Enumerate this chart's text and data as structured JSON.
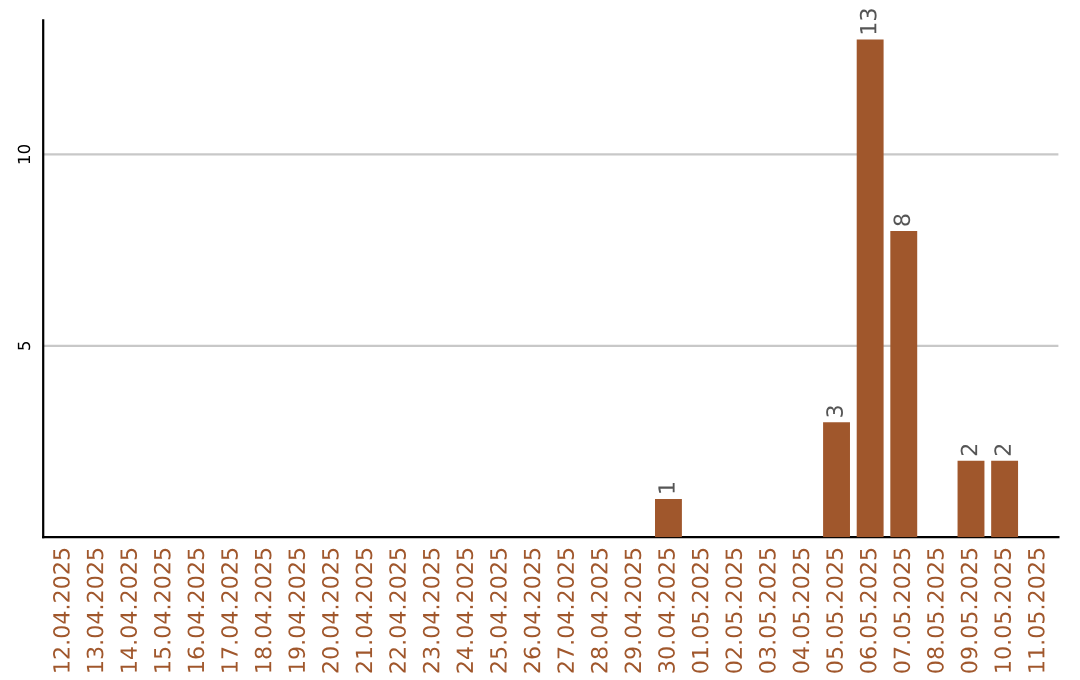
{
  "chart_data": {
    "type": "bar",
    "categories": [
      "12.04.2025",
      "13.04.2025",
      "14.04.2025",
      "15.04.2025",
      "16.04.2025",
      "17.04.2025",
      "18.04.2025",
      "19.04.2025",
      "20.04.2025",
      "21.04.2025",
      "22.04.2025",
      "23.04.2025",
      "24.04.2025",
      "25.04.2025",
      "26.04.2025",
      "27.04.2025",
      "28.04.2025",
      "29.04.2025",
      "30.04.2025",
      "01.05.2025",
      "02.05.2025",
      "03.05.2025",
      "04.05.2025",
      "05.05.2025",
      "06.05.2025",
      "07.05.2025",
      "08.05.2025",
      "09.05.2025",
      "10.05.2025",
      "11.05.2025"
    ],
    "values": [
      0,
      0,
      0,
      0,
      0,
      0,
      0,
      0,
      0,
      0,
      0,
      0,
      0,
      0,
      0,
      0,
      0,
      0,
      1,
      0,
      0,
      0,
      0,
      3,
      13,
      8,
      0,
      2,
      2,
      0
    ],
    "value_labels": [
      null,
      null,
      null,
      null,
      null,
      null,
      null,
      null,
      null,
      null,
      null,
      null,
      null,
      null,
      null,
      null,
      null,
      null,
      "1",
      null,
      null,
      null,
      null,
      "3",
      "13",
      "8",
      null,
      "2",
      "2",
      null
    ],
    "color": "#a0572c",
    "ylim": [
      0,
      13.5
    ],
    "yticks": [
      5,
      10
    ],
    "grid": "y"
  }
}
